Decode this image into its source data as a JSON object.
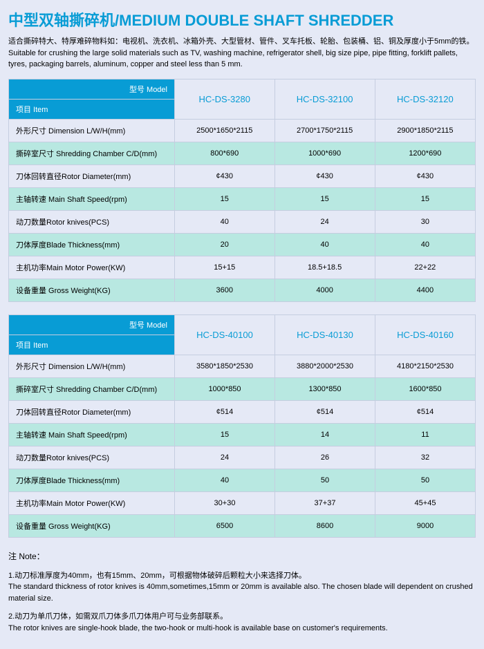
{
  "title": "中型双轴撕碎机/MEDIUM DOUBLE SHAFT SHREDDER",
  "desc_cn": "适合撕碎特大、特厚难碎物料如：电视机、洗衣机、冰箱外壳、大型管材、管件、叉车托板、轮胎、包装桶、铝、铜及厚度小于5mm的铁。",
  "desc_en": "Suitable for crushing the large solid materials such as TV, washing machine, refrigerator shell, big size pipe, pipe fitting, forklift pallets, tyres, packaging barrels, aluminum, copper and steel less than 5 mm.",
  "model_label": "型号 Model",
  "item_label": "项目 Item",
  "row_labels": [
    "外形尺寸 Dimension L/W/H(mm)",
    "撕碎室尺寸 Shredding Chamber C/D(mm)",
    "刀体回转直径Rotor Diameter(mm)",
    "主轴转速 Main Shaft Speed(rpm)",
    "动刀数量Rotor knives(PCS)",
    "刀体厚度Blade Thickness(mm)",
    "主机功率Main Motor Power(KW)",
    "设备重量 Gross Weight(KG)"
  ],
  "table1": {
    "cols": [
      "HC-DS-3280",
      "HC-DS-32100",
      "HC-DS-32120"
    ],
    "rows": [
      [
        "2500*1650*2115",
        "2700*1750*2115",
        "2900*1850*2115"
      ],
      [
        "800*690",
        "1000*690",
        "1200*690"
      ],
      [
        "¢430",
        "¢430",
        "¢430"
      ],
      [
        "15",
        "15",
        "15"
      ],
      [
        "40",
        "24",
        "30"
      ],
      [
        "20",
        "40",
        "40"
      ],
      [
        "15+15",
        "18.5+18.5",
        "22+22"
      ],
      [
        "3600",
        "4000",
        "4400"
      ]
    ]
  },
  "table2": {
    "cols": [
      "HC-DS-40100",
      "HC-DS-40130",
      "HC-DS-40160"
    ],
    "rows": [
      [
        "3580*1850*2530",
        "3880*2000*2530",
        "4180*2150*2530"
      ],
      [
        "1000*850",
        "1300*850",
        "1600*850"
      ],
      [
        "¢514",
        "¢514",
        "¢514"
      ],
      [
        "15",
        "14",
        "11"
      ],
      [
        "24",
        "26",
        "32"
      ],
      [
        "40",
        "50",
        "50"
      ],
      [
        "30+30",
        "37+37",
        "45+45"
      ],
      [
        "6500",
        "8600",
        "9000"
      ]
    ]
  },
  "note_title": "注 Note：",
  "note1_cn": "1.动刀标准厚度为40mm，也有15mm、20mm，可根据物体破碎后颗粒大小来选择刀体。",
  "note1_en": "The standard thickness of rotor knives is 40mm,sometimes,15mm or 20mm is available also. The chosen blade will dependent on crushed material size.",
  "note2_cn": "2.动刀为单爪刀体，如需双爪刀体多爪刀体用户可与业务部联系。",
  "note2_en": "The rotor knives are single-hook blade, the two-hook or multi-hook is available base on customer's requirements.",
  "colors": {
    "accent": "#089cd5",
    "stripe": "#b8e8e1",
    "bg": "#e5e9f6",
    "border": "#c5cde0"
  }
}
